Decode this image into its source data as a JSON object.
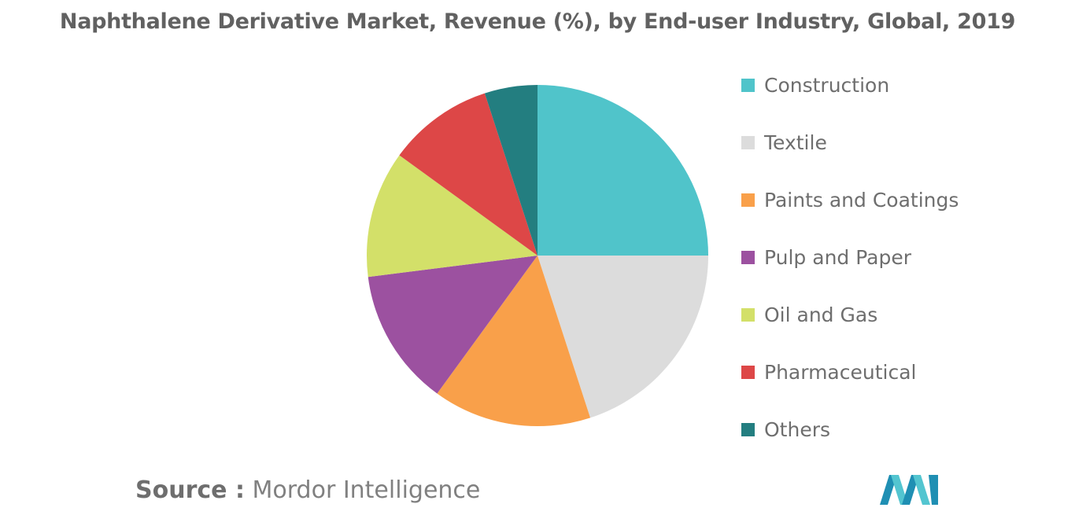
{
  "title": "Naphthalene Derivative Market, Revenue (%), by End-user Industry, Global, 2019",
  "source": {
    "label": "Source :",
    "value": "Mordor Intelligence"
  },
  "logo_icon": "mordor-intelligence-logo",
  "chart_data": {
    "type": "pie",
    "title": "Naphthalene Derivative Market, Revenue (%), by End-user Industry, Global, 2019",
    "legend_position": "right",
    "slices": [
      {
        "label": "Construction",
        "value": 25,
        "color": "#50c4ca"
      },
      {
        "label": "Textile",
        "value": 20,
        "color": "#dcdcdc"
      },
      {
        "label": "Paints and Coatings",
        "value": 15,
        "color": "#f9a04a"
      },
      {
        "label": "Pulp and Paper",
        "value": 13,
        "color": "#9c51a0"
      },
      {
        "label": "Oil and Gas",
        "value": 12,
        "color": "#d3e069"
      },
      {
        "label": "Pharmaceutical",
        "value": 10,
        "color": "#dd4747"
      },
      {
        "label": "Others",
        "value": 5,
        "color": "#237e80"
      }
    ]
  }
}
